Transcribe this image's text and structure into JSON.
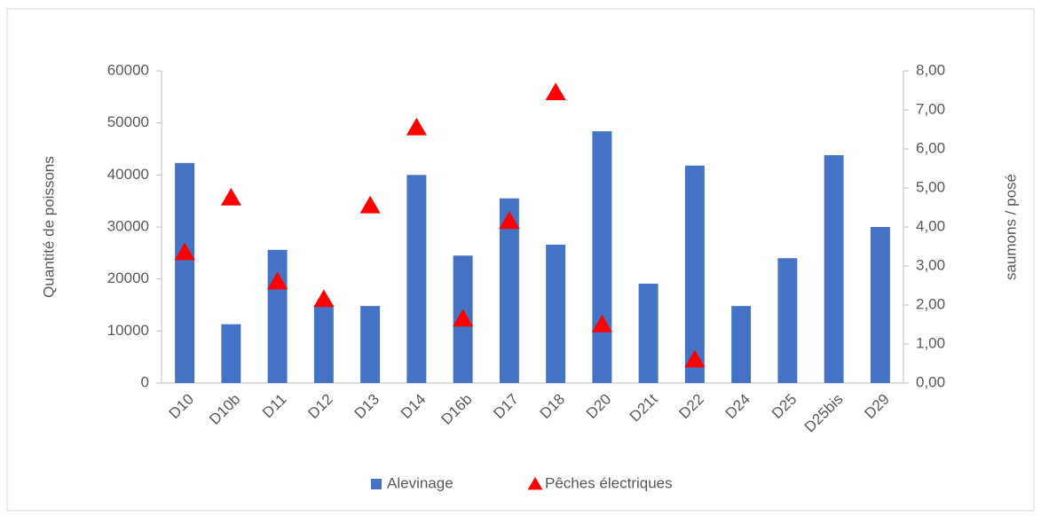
{
  "chart_data": {
    "type": "bar+scatter",
    "ylabel": "Quantité de poissons",
    "y2label": "saumons / posé",
    "categories": [
      "D10",
      "D10b",
      "D11",
      "D12",
      "D13",
      "D14",
      "D16b",
      "D17",
      "D18",
      "D20",
      "D21t",
      "D22",
      "D24",
      "D25",
      "D25bis",
      "D29"
    ],
    "series": [
      {
        "name": "Alevinage",
        "type": "bar",
        "color": "#4472c4",
        "values": [
          42300,
          11300,
          25600,
          15000,
          14800,
          40000,
          24500,
          35500,
          26600,
          48400,
          19100,
          41800,
          14800,
          24000,
          43800,
          30000
        ]
      },
      {
        "name": "Pêches électriques",
        "type": "scatter",
        "axis": "y2",
        "color": "#ff0000",
        "values": [
          3.35,
          4.75,
          2.6,
          2.15,
          4.55,
          6.55,
          1.65,
          4.15,
          7.45,
          1.5,
          null,
          0.6,
          null,
          null,
          null,
          null
        ]
      }
    ],
    "ylim": [
      0,
      60000
    ],
    "yticks": [
      0,
      10000,
      20000,
      30000,
      40000,
      50000,
      60000
    ],
    "y2lim": [
      0,
      8
    ],
    "y2ticks": [
      {
        "value": 0,
        "label": "0,00"
      },
      {
        "value": 1,
        "label": "1,00"
      },
      {
        "value": 2,
        "label": "2,00"
      },
      {
        "value": 3,
        "label": "3,00"
      },
      {
        "value": 4,
        "label": "4,00"
      },
      {
        "value": 5,
        "label": "5,00"
      },
      {
        "value": 6,
        "label": "6,00"
      },
      {
        "value": 7,
        "label": "7,00"
      },
      {
        "value": 8,
        "label": "8,00"
      }
    ],
    "grid": false,
    "legend": "bottom"
  }
}
